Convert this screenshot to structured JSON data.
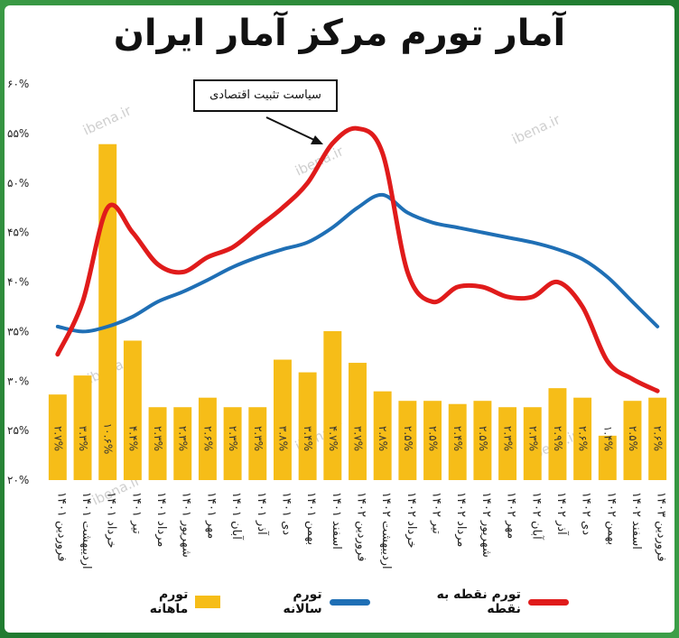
{
  "title": "آمار تورم مرکز آمار ایران",
  "watermark": "ibena.ir",
  "annotation": "سیاست تثبیت اقتصادی",
  "legend": {
    "point": "تورم نقطه به نقطه",
    "annual": "تورم سالانه",
    "monthly": "تورم ماهانه"
  },
  "colors": {
    "bar": "#f6bd18",
    "annual": "#1f6fb5",
    "point": "#e01b1b",
    "background": "#2f8c3c"
  },
  "chart_data": {
    "type": "bar+line",
    "y_axis": {
      "min": 20,
      "max": 60,
      "step": 5,
      "tick_labels": [
        "۲۰%",
        "۲۵%",
        "۳۰%",
        "۳۵%",
        "۴۰%",
        "۴۵%",
        "۵۰%",
        "۵۵%",
        "۶۰%"
      ]
    },
    "categories": [
      "فروردین ۱۴۰۱",
      "اردیبهشت ۱۴۰۱",
      "خرداد ۱۴۰۱",
      "تیر ۱۴۰۱",
      "مرداد ۱۴۰۱",
      "شهریور ۱۴۰۱",
      "مهر ۱۴۰۱",
      "آبان ۱۴۰۱",
      "آذر ۱۴۰۱",
      "دی ۱۴۰۱",
      "بهمن ۱۴۰۱",
      "اسفند ۱۴۰۱",
      "فروردین ۱۴۰۲",
      "اردیبهشت ۱۴۰۲",
      "خرداد ۱۴۰۲",
      "تیر ۱۴۰۲",
      "مرداد ۱۴۰۲",
      "شهریور ۱۴۰۲",
      "مهر ۱۴۰۲",
      "آبان ۱۴۰۲",
      "آذر ۱۴۰۲",
      "دی ۱۴۰۲",
      "بهمن ۱۴۰۲",
      "اسفند ۱۴۰۲",
      "فروردین ۱۴۰۳"
    ],
    "monthly": {
      "name": "تورم ماهانه",
      "values": [
        2.7,
        3.3,
        10.6,
        4.4,
        2.3,
        2.3,
        2.6,
        2.3,
        2.3,
        3.8,
        3.4,
        4.7,
        3.7,
        2.8,
        2.5,
        2.5,
        2.4,
        2.5,
        2.3,
        2.3,
        2.9,
        2.6,
        1.4,
        2.5,
        2.6
      ],
      "labels": [
        "۲.۷%",
        "۳.۳%",
        "۱۰.۶%",
        "۴.۴%",
        "۲.۳%",
        "۲.۳%",
        "۲.۶%",
        "۲.۳%",
        "۲.۳%",
        "۳.۸%",
        "۳.۴%",
        "۴.۷%",
        "۳.۷%",
        "۲.۸%",
        "۲.۵%",
        "۲.۵%",
        "۲.۴%",
        "۲.۵%",
        "۲.۳%",
        "۲.۳%",
        "۲.۹%",
        "۲.۶%",
        "۱.۴%",
        "۲.۵%",
        "۲.۶%"
      ]
    },
    "annual": {
      "name": "تورم سالانه",
      "values": [
        35.5,
        35.0,
        35.5,
        36.5,
        38.0,
        39.0,
        40.2,
        41.5,
        42.5,
        43.3,
        44.0,
        45.5,
        47.5,
        48.8,
        47.0,
        46.0,
        45.5,
        45.0,
        44.5,
        44.0,
        43.3,
        42.3,
        40.5,
        38.0,
        35.5
      ]
    },
    "point_to_point": {
      "name": "تورم نقطه به نقطه",
      "values": [
        32.7,
        38.0,
        47.5,
        45.0,
        41.8,
        41.0,
        42.5,
        43.5,
        45.5,
        47.5,
        50.0,
        54.0,
        55.5,
        53.0,
        41.0,
        38.0,
        39.5,
        39.5,
        38.5,
        38.5,
        40.0,
        37.5,
        32.0,
        30.2,
        29.0
      ]
    }
  }
}
